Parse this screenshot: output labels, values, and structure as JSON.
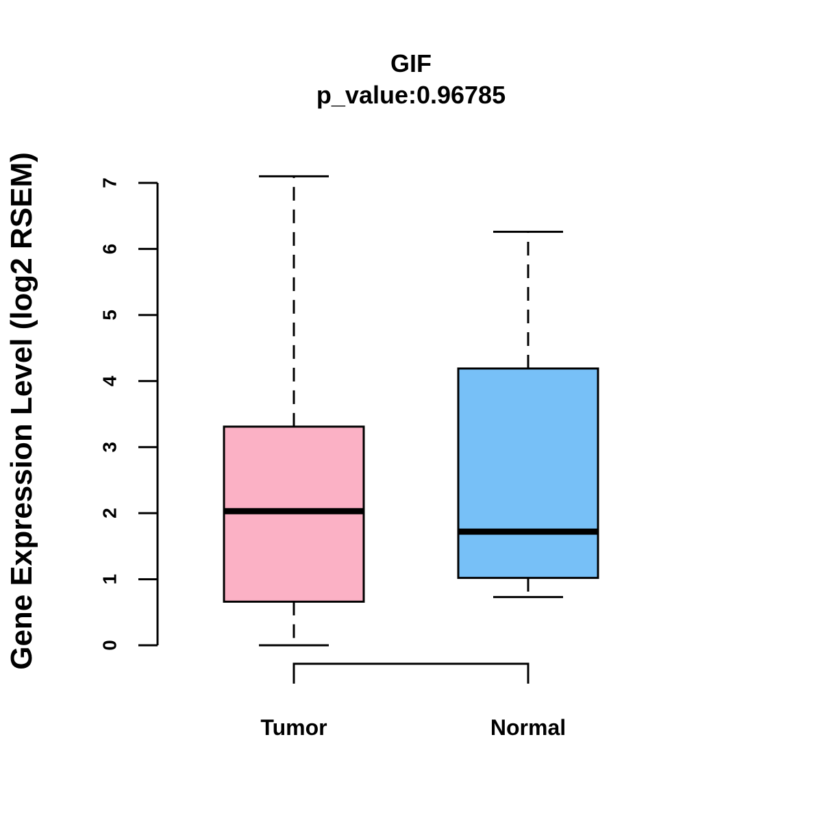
{
  "chart_data": {
    "type": "boxplot",
    "title": "GIF",
    "subtitle": "p_value:0.96785",
    "ylabel": "Gene Expression Level (log2 RSEM)",
    "xlabel": "",
    "ylim": [
      0,
      7
    ],
    "yticks": [
      "0",
      "1",
      "2",
      "3",
      "4",
      "5",
      "6",
      "7"
    ],
    "categories": [
      "Tumor",
      "Normal"
    ],
    "series": [
      {
        "name": "Tumor",
        "whisker_low": 0.0,
        "q1": 0.66,
        "median": 2.03,
        "q3": 3.31,
        "whisker_high": 7.1,
        "color": "#FBB1C5"
      },
      {
        "name": "Normal",
        "whisker_low": 0.73,
        "q1": 1.02,
        "median": 1.72,
        "q3": 4.19,
        "whisker_high": 6.26,
        "color": "#77C0F7"
      }
    ],
    "comparison_bracket": [
      "Tumor",
      "Normal"
    ],
    "grid": false,
    "legend": "none"
  }
}
